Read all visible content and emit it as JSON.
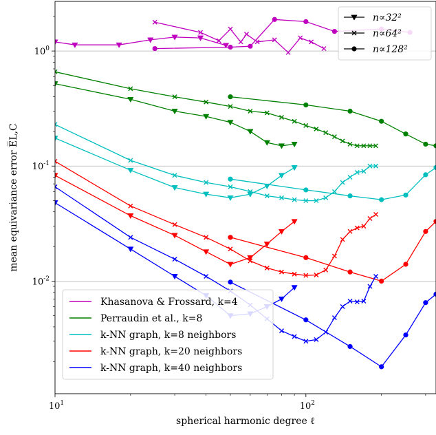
{
  "chart_data": {
    "type": "line",
    "xscale": "log",
    "yscale": "log",
    "xlim": [
      10,
      330
    ],
    "ylim": [
      0.00105,
      2.7
    ],
    "grid": "horizontal lines at major y ticks",
    "xlabel": "spherical harmonic degree ℓ",
    "ylabel": "mean equivariance error E̅L,C",
    "x_ticks": [
      {
        "value": 10,
        "base": "10",
        "exp": "1"
      },
      {
        "value": 100,
        "base": "10",
        "exp": "2"
      }
    ],
    "y_ticks": [
      {
        "value": 0.01,
        "base": "10",
        "exp": "-2"
      },
      {
        "value": 0.1,
        "base": "10",
        "exp": "-1"
      },
      {
        "value": 1,
        "base": "10",
        "exp": "0"
      }
    ],
    "marker_legend": {
      "placement": "top-right",
      "entries": [
        {
          "marker": "triangle",
          "label": "n∝32²"
        },
        {
          "marker": "x",
          "label": "n∝64²"
        },
        {
          "marker": "circle",
          "label": "n∝128²"
        }
      ]
    },
    "color_legend": {
      "placement": "bottom-left",
      "entries": [
        {
          "color": "#bf00bf",
          "label": "Khasanova & Frossard, k=4"
        },
        {
          "color": "#008000",
          "label": "Perraudin et al., k=8"
        },
        {
          "color": "#00bfbf",
          "label": "k-NN graph, k=8 neighbors"
        },
        {
          "color": "#ff0000",
          "label": "k-NN graph, k=20 neighbors"
        },
        {
          "color": "#0000ff",
          "label": "k-NN graph, k=40 neighbors"
        }
      ]
    },
    "series": [
      {
        "group": "Khasanova & Frossard, k=4",
        "color": "#bf00bf",
        "marker": "triangle",
        "points": [
          [
            10,
            1.2
          ],
          [
            12,
            1.13
          ],
          [
            18,
            1.13
          ],
          [
            24,
            1.25
          ],
          [
            30,
            1.32
          ],
          [
            38,
            1.3
          ],
          [
            48,
            1.12
          ]
        ]
      },
      {
        "group": "Khasanova & Frossard, k=4",
        "color": "#bf00bf",
        "marker": "x",
        "points": [
          [
            25,
            1.78
          ],
          [
            38,
            1.45
          ],
          [
            45,
            1.23
          ],
          [
            50,
            1.55
          ],
          [
            55,
            1.2
          ],
          [
            58,
            1.4
          ],
          [
            64,
            1.2
          ],
          [
            75,
            1.25
          ],
          [
            85,
            0.97
          ],
          [
            95,
            1.3
          ],
          [
            105,
            1.2
          ],
          [
            118,
            1.05
          ]
        ]
      },
      {
        "group": "Khasanova & Frossard, k=4",
        "color": "#bf00bf",
        "marker": "circle",
        "points": [
          [
            25,
            1.05
          ],
          [
            50,
            1.08
          ],
          [
            60,
            1.1
          ],
          [
            75,
            1.88
          ],
          [
            100,
            1.8
          ],
          [
            130,
            1.48
          ],
          [
            200,
            1.55
          ],
          [
            260,
            1.45
          ]
        ]
      },
      {
        "group": "Perraudin et al., k=8",
        "color": "#008000",
        "marker": "triangle",
        "points": [
          [
            10,
            0.52
          ],
          [
            20,
            0.38
          ],
          [
            30,
            0.3
          ],
          [
            40,
            0.27
          ],
          [
            50,
            0.24
          ],
          [
            60,
            0.2
          ],
          [
            70,
            0.16
          ],
          [
            80,
            0.15
          ],
          [
            90,
            0.155
          ]
        ]
      },
      {
        "group": "Perraudin et al., k=8",
        "color": "#008000",
        "marker": "x",
        "points": [
          [
            10,
            0.66
          ],
          [
            20,
            0.47
          ],
          [
            30,
            0.4
          ],
          [
            40,
            0.36
          ],
          [
            50,
            0.33
          ],
          [
            60,
            0.3
          ],
          [
            70,
            0.29
          ],
          [
            80,
            0.265
          ],
          [
            90,
            0.245
          ],
          [
            100,
            0.225
          ],
          [
            110,
            0.21
          ],
          [
            120,
            0.195
          ],
          [
            130,
            0.18
          ],
          [
            140,
            0.165
          ],
          [
            150,
            0.155
          ],
          [
            160,
            0.15
          ],
          [
            170,
            0.15
          ],
          [
            180,
            0.15
          ],
          [
            190,
            0.15
          ]
        ]
      },
      {
        "group": "Perraudin et al., k=8",
        "color": "#008000",
        "marker": "circle",
        "points": [
          [
            50,
            0.4
          ],
          [
            100,
            0.34
          ],
          [
            150,
            0.3
          ],
          [
            200,
            0.245
          ],
          [
            250,
            0.19
          ],
          [
            300,
            0.155
          ],
          [
            330,
            0.15
          ]
        ]
      },
      {
        "group": "k-NN graph, k=8 neighbors",
        "color": "#00bfbf",
        "marker": "triangle",
        "points": [
          [
            10,
            0.175
          ],
          [
            20,
            0.092
          ],
          [
            30,
            0.065
          ],
          [
            40,
            0.057
          ],
          [
            50,
            0.053
          ],
          [
            60,
            0.057
          ],
          [
            70,
            0.067
          ],
          [
            80,
            0.083
          ],
          [
            90,
            0.097
          ]
        ]
      },
      {
        "group": "k-NN graph, k=8 neighbors",
        "color": "#00bfbf",
        "marker": "x",
        "points": [
          [
            10,
            0.23
          ],
          [
            20,
            0.112
          ],
          [
            30,
            0.083
          ],
          [
            40,
            0.072
          ],
          [
            50,
            0.066
          ],
          [
            60,
            0.06
          ],
          [
            70,
            0.055
          ],
          [
            80,
            0.053
          ],
          [
            90,
            0.051
          ],
          [
            100,
            0.05
          ],
          [
            110,
            0.05
          ],
          [
            120,
            0.053
          ],
          [
            130,
            0.06
          ],
          [
            140,
            0.072
          ],
          [
            150,
            0.08
          ],
          [
            160,
            0.088
          ],
          [
            170,
            0.09
          ],
          [
            180,
            0.1
          ],
          [
            190,
            0.1
          ]
        ]
      },
      {
        "group": "k-NN graph, k=8 neighbors",
        "color": "#00bfbf",
        "marker": "circle",
        "points": [
          [
            50,
            0.077
          ],
          [
            100,
            0.062
          ],
          [
            150,
            0.055
          ],
          [
            200,
            0.051
          ],
          [
            250,
            0.056
          ],
          [
            300,
            0.084
          ],
          [
            330,
            0.097
          ]
        ]
      },
      {
        "group": "k-NN graph, k=20 neighbors",
        "color": "#ff0000",
        "marker": "triangle",
        "points": [
          [
            10,
            0.083
          ],
          [
            20,
            0.037
          ],
          [
            30,
            0.025
          ],
          [
            40,
            0.018
          ],
          [
            50,
            0.014
          ],
          [
            60,
            0.016
          ],
          [
            70,
            0.021
          ],
          [
            80,
            0.027
          ],
          [
            90,
            0.033
          ]
        ]
      },
      {
        "group": "k-NN graph, k=20 neighbors",
        "color": "#ff0000",
        "marker": "x",
        "points": [
          [
            10,
            0.11
          ],
          [
            20,
            0.045
          ],
          [
            30,
            0.031
          ],
          [
            40,
            0.024
          ],
          [
            50,
            0.019
          ],
          [
            60,
            0.015
          ],
          [
            70,
            0.013
          ],
          [
            80,
            0.012
          ],
          [
            90,
            0.0115
          ],
          [
            100,
            0.0112
          ],
          [
            110,
            0.0113
          ],
          [
            120,
            0.0125
          ],
          [
            130,
            0.0165
          ],
          [
            140,
            0.023
          ],
          [
            150,
            0.027
          ],
          [
            160,
            0.029
          ],
          [
            170,
            0.03
          ],
          [
            180,
            0.035
          ],
          [
            190,
            0.038
          ]
        ]
      },
      {
        "group": "k-NN graph, k=20 neighbors",
        "color": "#ff0000",
        "marker": "circle",
        "points": [
          [
            50,
            0.024
          ],
          [
            100,
            0.016
          ],
          [
            150,
            0.012
          ],
          [
            200,
            0.01
          ],
          [
            250,
            0.014
          ],
          [
            300,
            0.027
          ],
          [
            330,
            0.033
          ]
        ]
      },
      {
        "group": "k-NN graph, k=40 neighbors",
        "color": "#0000ff",
        "marker": "triangle",
        "points": [
          [
            10,
            0.048
          ],
          [
            20,
            0.019
          ],
          [
            30,
            0.011
          ],
          [
            40,
            0.0075
          ],
          [
            50,
            0.005
          ],
          [
            60,
            0.0052
          ],
          [
            70,
            0.006
          ],
          [
            80,
            0.007
          ],
          [
            90,
            0.0088
          ]
        ]
      },
      {
        "group": "k-NN graph, k=40 neighbors",
        "color": "#0000ff",
        "marker": "x",
        "points": [
          [
            10,
            0.066
          ],
          [
            20,
            0.024
          ],
          [
            30,
            0.0155
          ],
          [
            40,
            0.011
          ],
          [
            50,
            0.0082
          ],
          [
            60,
            0.0062
          ],
          [
            70,
            0.0047
          ],
          [
            80,
            0.0037
          ],
          [
            90,
            0.0033
          ],
          [
            100,
            0.003
          ],
          [
            110,
            0.0031
          ],
          [
            120,
            0.0036
          ],
          [
            130,
            0.0048
          ],
          [
            140,
            0.006
          ],
          [
            150,
            0.0067
          ],
          [
            160,
            0.0066
          ],
          [
            170,
            0.0067
          ],
          [
            180,
            0.009
          ],
          [
            190,
            0.011
          ]
        ]
      },
      {
        "group": "k-NN graph, k=40 neighbors",
        "color": "#0000ff",
        "marker": "circle",
        "points": [
          [
            50,
            0.0098
          ],
          [
            100,
            0.0046
          ],
          [
            150,
            0.0027
          ],
          [
            200,
            0.0018
          ],
          [
            250,
            0.0034
          ],
          [
            300,
            0.0065
          ],
          [
            330,
            0.0077
          ]
        ]
      }
    ]
  }
}
